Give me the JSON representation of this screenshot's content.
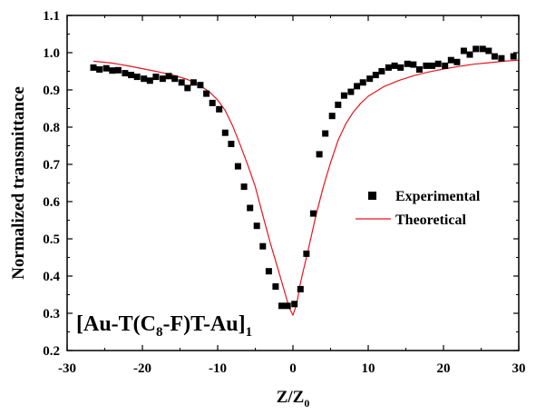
{
  "chart_data": {
    "type": "scatter",
    "xlabel": "Z/Z",
    "xlabel_sub": "0",
    "ylabel": "Normalized transmittance",
    "xlim": [
      -30,
      30
    ],
    "ylim": [
      0.2,
      1.1
    ],
    "x_ticks": [
      -30,
      -20,
      -10,
      0,
      10,
      20,
      30
    ],
    "y_ticks": [
      "0.2",
      "0.3",
      "0.4",
      "0.5",
      "0.6",
      "0.7",
      "0.8",
      "0.9",
      "1.0",
      "1.1"
    ],
    "legend_position": "right-middle",
    "annotation": {
      "part1": "[Au-T(C",
      "sub1": "8",
      "part2": "-F)T-Au]",
      "sub2": "1"
    },
    "series": [
      {
        "name": "Experimental",
        "kind": "scatter",
        "marker": "square",
        "color": "#000000",
        "x": [
          -26.5,
          -25.7,
          -24.8,
          -24.0,
          -23.2,
          -22.3,
          -21.5,
          -20.7,
          -19.8,
          -19.0,
          -18.2,
          -17.3,
          -16.5,
          -15.7,
          -14.8,
          -14.0,
          -13.2,
          -12.3,
          -11.5,
          -10.7,
          -9.8,
          -9.0,
          -8.2,
          -7.3,
          -6.5,
          -5.7,
          -4.8,
          -4.0,
          -3.2,
          -2.3,
          -1.5,
          -0.7,
          0.2,
          1.0,
          1.8,
          2.7,
          3.5,
          4.3,
          5.2,
          6.0,
          6.8,
          7.7,
          8.5,
          9.3,
          10.2,
          11.0,
          11.8,
          12.7,
          13.5,
          14.3,
          15.2,
          16.0,
          16.8,
          17.7,
          18.5,
          19.3,
          20.2,
          21.0,
          21.8,
          22.7,
          23.5,
          24.3,
          25.2,
          26.0,
          26.8,
          27.7,
          29.3
        ],
        "y": [
          0.96,
          0.955,
          0.958,
          0.952,
          0.953,
          0.945,
          0.94,
          0.935,
          0.93,
          0.925,
          0.935,
          0.93,
          0.937,
          0.93,
          0.92,
          0.905,
          0.92,
          0.913,
          0.89,
          0.865,
          0.848,
          0.785,
          0.755,
          0.695,
          0.64,
          0.583,
          0.535,
          0.48,
          0.413,
          0.372,
          0.32,
          0.32,
          0.325,
          0.365,
          0.46,
          0.568,
          0.727,
          0.783,
          0.83,
          0.86,
          0.885,
          0.895,
          0.91,
          0.92,
          0.93,
          0.94,
          0.95,
          0.96,
          0.965,
          0.96,
          0.97,
          0.968,
          0.955,
          0.965,
          0.965,
          0.97,
          0.965,
          0.98,
          0.975,
          1.005,
          0.995,
          1.01,
          1.01,
          1.005,
          0.99,
          0.985,
          0.99
        ]
      },
      {
        "name": "Theoretical",
        "kind": "line",
        "color": "#e8141d",
        "x": [
          -26.5,
          -24,
          -22,
          -20,
          -18,
          -16,
          -14,
          -12,
          -11,
          -10,
          -9,
          -8,
          -7,
          -6,
          -5,
          -4,
          -3,
          -2,
          -1,
          -0.5,
          0,
          0.5,
          1,
          2,
          3,
          4,
          5,
          6,
          7,
          8,
          9,
          10,
          12,
          14,
          16,
          18,
          20,
          22,
          24,
          26,
          28,
          30
        ],
        "y": [
          0.977,
          0.972,
          0.965,
          0.957,
          0.949,
          0.94,
          0.928,
          0.907,
          0.893,
          0.873,
          0.845,
          0.803,
          0.752,
          0.698,
          0.64,
          0.563,
          0.488,
          0.42,
          0.35,
          0.315,
          0.295,
          0.325,
          0.382,
          0.468,
          0.558,
          0.637,
          0.705,
          0.765,
          0.808,
          0.84,
          0.864,
          0.883,
          0.908,
          0.925,
          0.938,
          0.948,
          0.956,
          0.963,
          0.969,
          0.973,
          0.977,
          0.98
        ]
      }
    ]
  }
}
